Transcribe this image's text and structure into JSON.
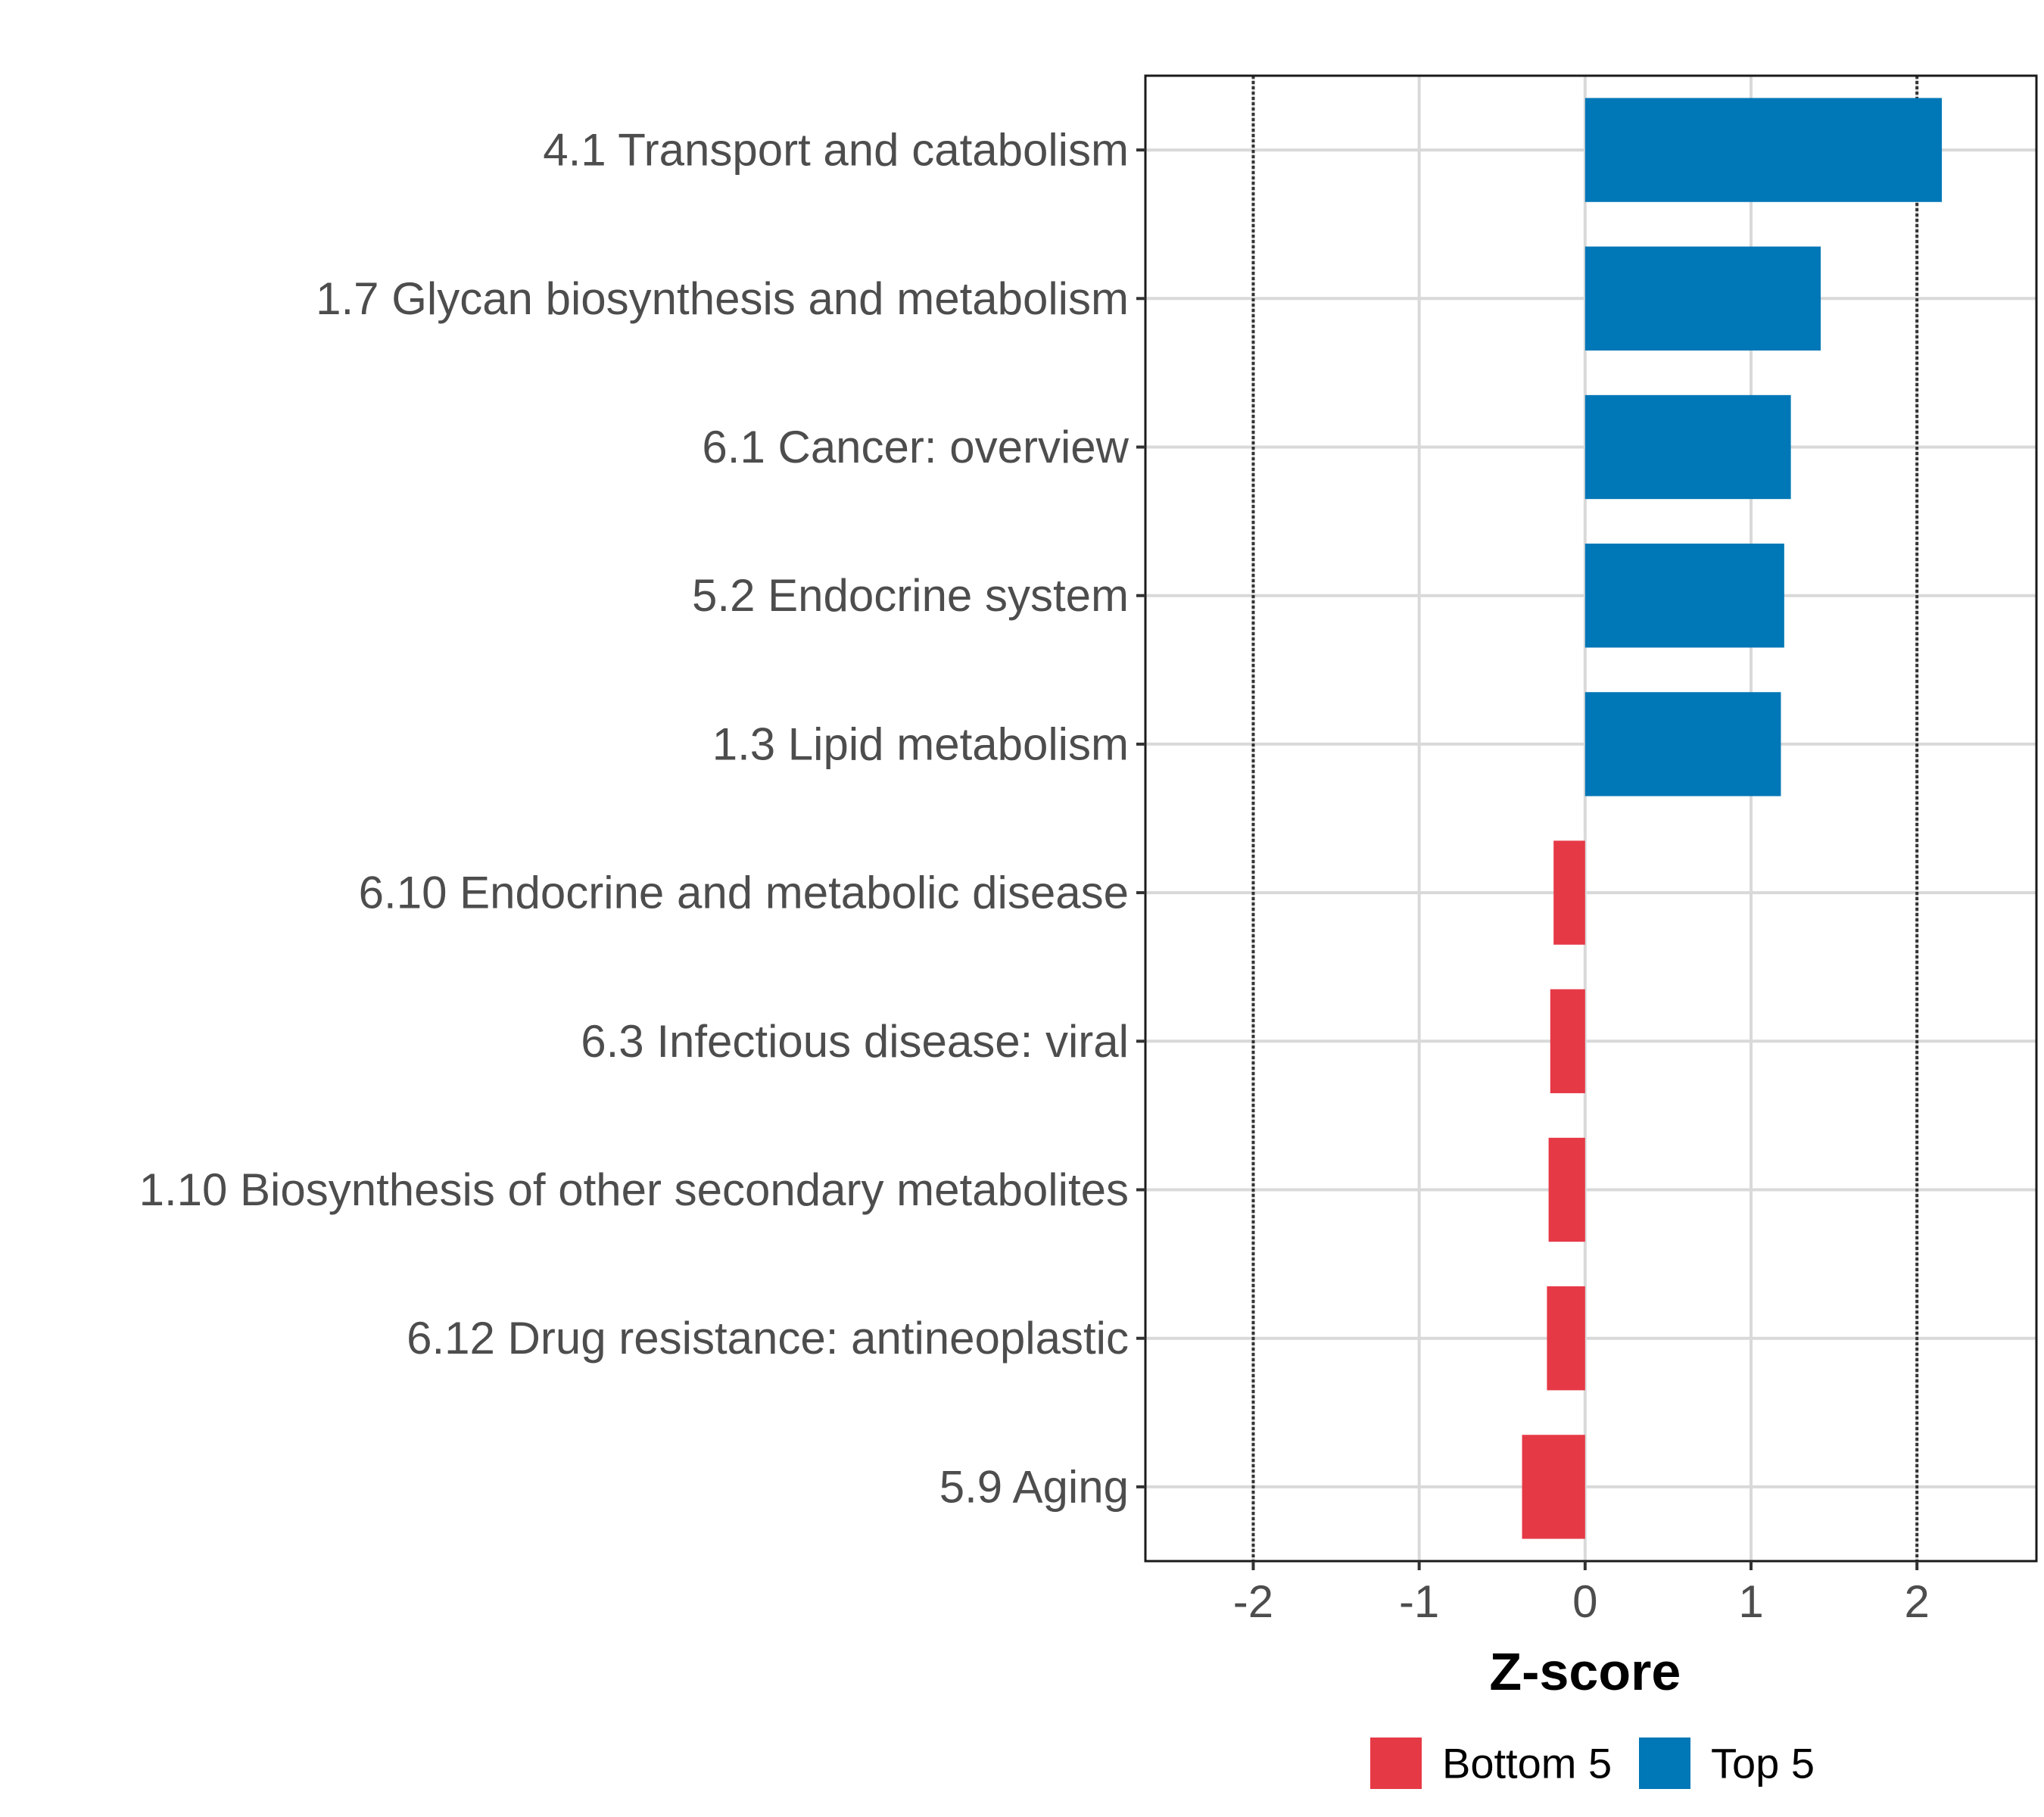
{
  "chart_data": {
    "type": "bar",
    "orientation": "horizontal",
    "title": "",
    "xlabel": "Z-score",
    "ylabel": "",
    "xlim": [
      -2.65,
      2.72
    ],
    "xticks": [
      -2,
      -1,
      0,
      1,
      2
    ],
    "xtick_labels": [
      "-2",
      "-1",
      "0",
      "1",
      "2"
    ],
    "reference_lines": [
      -2,
      2
    ],
    "grid": true,
    "legend_position": "bottom",
    "categories": [
      "4.1 Transport and catabolism",
      "1.7 Glycan biosynthesis and metabolism",
      "6.1 Cancer: overview",
      "5.2 Endocrine system",
      "1.3 Lipid metabolism",
      "6.10 Endocrine and metabolic disease",
      "6.3 Infectious disease: viral",
      "1.10 Biosynthesis of other secondary metabolites",
      "6.12 Drug resistance: antineoplastic",
      "5.9 Aging"
    ],
    "values": [
      2.15,
      1.42,
      1.24,
      1.2,
      1.18,
      -0.19,
      -0.21,
      -0.22,
      -0.23,
      -0.38
    ],
    "groups": [
      "Top 5",
      "Top 5",
      "Top 5",
      "Top 5",
      "Top 5",
      "Bottom 5",
      "Bottom 5",
      "Bottom 5",
      "Bottom 5",
      "Bottom 5"
    ],
    "legend": [
      {
        "name": "Bottom 5",
        "color": "#e63946"
      },
      {
        "name": "Top 5",
        "color": "#0077b6"
      }
    ]
  }
}
